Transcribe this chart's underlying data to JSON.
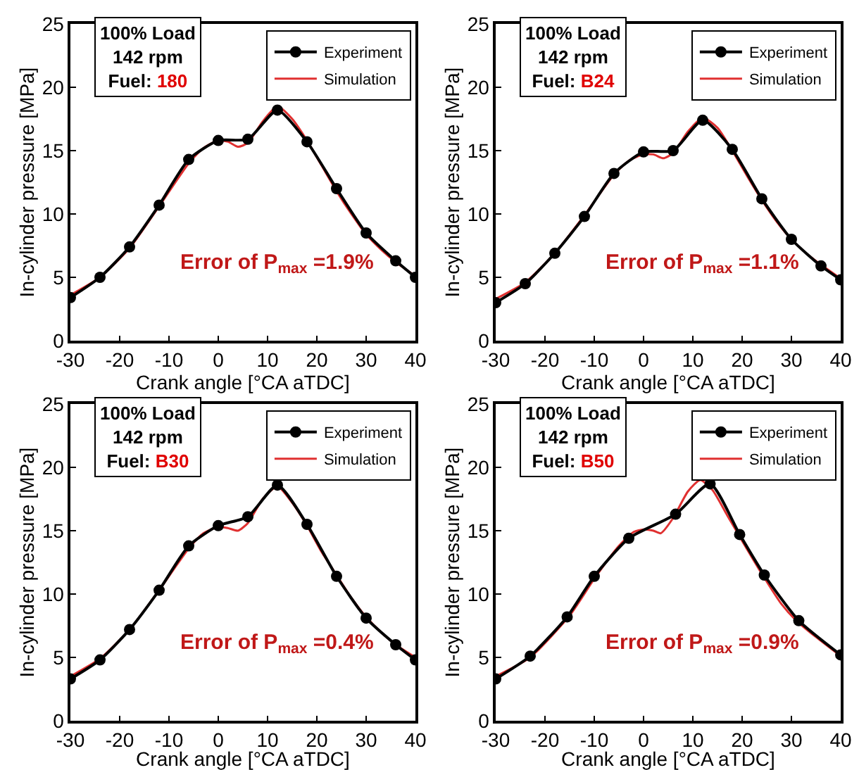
{
  "chart_data": [
    {
      "type": "line",
      "xlabel": "Crank angle [°CA aTDC]",
      "ylabel": "In-cylinder pressure [MPa]",
      "xlim": [
        -30,
        40
      ],
      "ylim": [
        0,
        25
      ],
      "xticks": [
        -30,
        -20,
        -10,
        0,
        10,
        20,
        30,
        40
      ],
      "yticks": [
        0,
        5,
        10,
        15,
        20,
        25
      ],
      "grid": false,
      "legend": "top right",
      "annotations": [
        "100% Load",
        "142 rpm",
        "Fuel:",
        "180",
        "Error of P$_{max}$ =1.9%"
      ],
      "series": [
        {
          "name": "Experiment",
          "color": "#000000",
          "marker": "circle",
          "x": [
            -30,
            -24,
            -18,
            -12,
            -6,
            0,
            6,
            12,
            18,
            24,
            30,
            36,
            40
          ],
          "values": [
            3.4,
            5.0,
            7.4,
            10.7,
            14.3,
            15.8,
            15.9,
            18.2,
            15.7,
            12.0,
            8.5,
            6.3,
            5.0
          ]
        },
        {
          "name": "Simulation",
          "color": "#e03030",
          "marker": "none",
          "x": [
            -30,
            -24,
            -18,
            -12,
            -6,
            -3,
            0,
            2,
            4,
            6,
            9,
            12,
            15,
            18,
            21,
            24,
            27,
            30,
            33,
            36,
            40
          ],
          "values": [
            3.6,
            5.0,
            7.3,
            10.6,
            14.0,
            15.2,
            15.8,
            15.7,
            15.3,
            15.6,
            17.3,
            18.5,
            17.5,
            15.8,
            13.8,
            11.8,
            10.0,
            8.4,
            7.2,
            6.2,
            5.1
          ]
        }
      ]
    },
    {
      "type": "line",
      "xlabel": "Crank angle [°CA aTDC]",
      "ylabel": "In-cylinder pressure [MPa]",
      "xlim": [
        -30,
        40
      ],
      "ylim": [
        0,
        25
      ],
      "xticks": [
        -30,
        -20,
        -10,
        0,
        10,
        20,
        30,
        40
      ],
      "yticks": [
        0,
        5,
        10,
        15,
        20,
        25
      ],
      "grid": false,
      "legend": "top right",
      "annotations": [
        "100% Load",
        "142 rpm",
        "Fuel:",
        "B24",
        "Error of P$_{max}$ =1.1%"
      ],
      "series": [
        {
          "name": "Experiment",
          "color": "#000000",
          "marker": "circle",
          "x": [
            -30,
            -24,
            -18,
            -12,
            -6,
            0,
            6,
            12,
            18,
            24,
            30,
            36,
            40
          ],
          "values": [
            3.0,
            4.5,
            6.9,
            9.8,
            13.2,
            14.9,
            15.0,
            17.4,
            15.1,
            11.2,
            8.0,
            5.9,
            4.8
          ]
        },
        {
          "name": "Simulation",
          "color": "#e03030",
          "marker": "none",
          "x": [
            -30,
            -24,
            -18,
            -12,
            -6,
            -3,
            0,
            2,
            4,
            6,
            9,
            12,
            15,
            18,
            21,
            24,
            27,
            30,
            33,
            36,
            40
          ],
          "values": [
            3.3,
            4.6,
            6.9,
            9.9,
            13.1,
            14.2,
            14.7,
            14.7,
            14.4,
            14.8,
            16.5,
            17.6,
            16.8,
            15.0,
            13.0,
            11.1,
            9.4,
            8.0,
            6.9,
            6.0,
            4.9
          ]
        }
      ]
    },
    {
      "type": "line",
      "xlabel": "Crank angle [°CA aTDC]",
      "ylabel": "In-cylinder pressure [MPa]",
      "xlim": [
        -30,
        40
      ],
      "ylim": [
        0,
        25
      ],
      "xticks": [
        -30,
        -20,
        -10,
        0,
        10,
        20,
        30,
        40
      ],
      "yticks": [
        0,
        5,
        10,
        15,
        20,
        25
      ],
      "grid": false,
      "legend": "top right",
      "annotations": [
        "100% Load",
        "142 rpm",
        "Fuel:",
        "B30",
        "Error of P$_{max}$ =0.4%"
      ],
      "series": [
        {
          "name": "Experiment",
          "color": "#000000",
          "marker": "circle",
          "x": [
            -30,
            -24,
            -18,
            -12,
            -6,
            0,
            6,
            12,
            18,
            24,
            30,
            36,
            40
          ],
          "values": [
            3.3,
            4.8,
            7.2,
            10.3,
            13.8,
            15.4,
            16.1,
            18.6,
            15.5,
            11.4,
            8.1,
            6.0,
            4.8
          ]
        },
        {
          "name": "Simulation",
          "color": "#e03030",
          "marker": "none",
          "x": [
            -30,
            -24,
            -18,
            -12,
            -6,
            -3,
            0,
            2,
            4,
            6,
            9,
            12,
            15,
            18,
            21,
            24,
            27,
            30,
            33,
            36,
            40
          ],
          "values": [
            3.5,
            4.9,
            7.2,
            10.3,
            13.6,
            14.8,
            15.3,
            15.2,
            15.0,
            15.6,
            17.5,
            18.5,
            17.2,
            15.4,
            13.3,
            11.5,
            9.7,
            8.2,
            7.0,
            6.0,
            5.0
          ]
        }
      ]
    },
    {
      "type": "line",
      "xlabel": "Crank angle [°CA aTDC]",
      "ylabel": "In-cylinder pressure [MPa]",
      "xlim": [
        -30,
        40
      ],
      "ylim": [
        0,
        25
      ],
      "xticks": [
        -30,
        -20,
        -10,
        0,
        10,
        20,
        30,
        40
      ],
      "yticks": [
        0,
        5,
        10,
        15,
        20,
        25
      ],
      "grid": false,
      "legend": "top right",
      "annotations": [
        "100% Load",
        "142 rpm",
        "Fuel:",
        "B50",
        "Error of P$_{max}$ =0.9%"
      ],
      "series": [
        {
          "name": "Experiment",
          "color": "#000000",
          "marker": "circle",
          "x": [
            -30,
            -23,
            -15.5,
            -10,
            -3,
            6.5,
            13.5,
            19.5,
            24.5,
            31.5,
            40
          ],
          "values": [
            3.3,
            5.1,
            8.2,
            11.4,
            14.4,
            16.3,
            18.7,
            14.7,
            11.5,
            7.9,
            5.2
          ]
        },
        {
          "name": "Simulation",
          "color": "#e03030",
          "marker": "none",
          "x": [
            -30,
            -23,
            -15,
            -10,
            -5,
            -2,
            0,
            2,
            3.5,
            6,
            9,
            11.5,
            14,
            17,
            20,
            24,
            28,
            31,
            35,
            40
          ],
          "values": [
            3.5,
            5.0,
            8.3,
            11.2,
            13.8,
            14.9,
            15.1,
            15.0,
            14.8,
            16.0,
            18.1,
            19.0,
            18.2,
            16.2,
            14.2,
            11.6,
            9.2,
            7.9,
            6.6,
            5.1
          ]
        }
      ]
    }
  ]
}
